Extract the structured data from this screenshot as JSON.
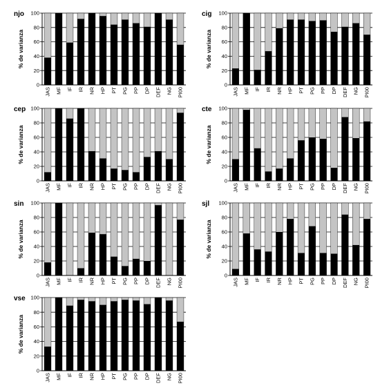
{
  "colors": {
    "dark": "#000000",
    "light": "#c4c4c4",
    "grid": "#000000"
  },
  "chart_data": [
    {
      "type": "bar",
      "title": "njo",
      "ylabel": "% de varianza",
      "ylim": [
        0,
        100
      ],
      "yticks": [
        0,
        20,
        40,
        60,
        80,
        100
      ],
      "categories": [
        "JAS",
        "MF",
        "IF",
        "IR",
        "NR",
        "HP",
        "PT",
        "PG",
        "PP",
        "DP",
        "DEF",
        "NG",
        "PI00"
      ],
      "values": [
        38,
        100,
        59,
        92,
        100,
        96,
        84,
        91,
        86,
        81,
        100,
        91,
        56
      ]
    },
    {
      "type": "bar",
      "title": "cig",
      "ylabel": "% de varianza",
      "ylim": [
        0,
        100
      ],
      "yticks": [
        0,
        20,
        40,
        60,
        80,
        100
      ],
      "categories": [
        "JAS",
        "MF",
        "IF",
        "IR",
        "NR",
        "HP",
        "PT",
        "PG",
        "PP",
        "DP",
        "DEF",
        "NG",
        "PI00"
      ],
      "values": [
        23,
        100,
        21,
        47,
        79,
        91,
        91,
        89,
        90,
        74,
        81,
        86,
        70
      ]
    },
    {
      "type": "bar",
      "title": "cep",
      "ylabel": "% de varianza",
      "ylim": [
        0,
        100
      ],
      "yticks": [
        0,
        20,
        40,
        60,
        80,
        100
      ],
      "categories": [
        "JAS",
        "MF",
        "IF",
        "IR",
        "NR",
        "HP",
        "PT",
        "PG",
        "PP",
        "DP",
        "DEF",
        "NG",
        "PI00"
      ],
      "values": [
        12,
        100,
        86,
        100,
        41,
        31,
        17,
        15,
        12,
        33,
        41,
        30,
        94
      ]
    },
    {
      "type": "bar",
      "title": "cte",
      "ylabel": "% de varianza",
      "ylim": [
        0,
        100
      ],
      "yticks": [
        0,
        20,
        40,
        60,
        80,
        100
      ],
      "categories": [
        "JAS",
        "MF",
        "IF",
        "IR",
        "NR",
        "HP",
        "PT",
        "PG",
        "PP",
        "DP",
        "DEF",
        "NG",
        "PI00"
      ],
      "values": [
        30,
        98,
        45,
        13,
        17,
        31,
        56,
        60,
        58,
        18,
        88,
        59,
        82
      ]
    },
    {
      "type": "bar",
      "title": "sin",
      "ylabel": "% de varianza",
      "ylim": [
        0,
        100
      ],
      "yticks": [
        0,
        20,
        40,
        60,
        80,
        100
      ],
      "categories": [
        "JAS",
        "MF",
        "IF",
        "IR",
        "NR",
        "HP",
        "PT",
        "PG",
        "PP",
        "DP",
        "DEF",
        "NG",
        "PI00"
      ],
      "values": [
        18,
        100,
        0,
        10,
        59,
        57,
        26,
        13,
        23,
        20,
        97,
        0,
        77
      ]
    },
    {
      "type": "bar",
      "title": "sjl",
      "ylabel": "% de varianza",
      "ylim": [
        0,
        100
      ],
      "yticks": [
        0,
        20,
        40,
        60,
        80,
        100
      ],
      "categories": [
        "JAS",
        "MF",
        "IF",
        "IR",
        "NR",
        "HP",
        "PT",
        "PG",
        "PP",
        "DP",
        "DEF",
        "NG",
        "PI00"
      ],
      "values": [
        9,
        58,
        36,
        33,
        60,
        78,
        31,
        68,
        31,
        30,
        84,
        42,
        78
      ]
    },
    {
      "type": "bar",
      "title": "vse",
      "ylabel": "% de varianza",
      "ylim": [
        0,
        100
      ],
      "yticks": [
        0,
        20,
        40,
        60,
        80,
        100
      ],
      "categories": [
        "JAS",
        "MF",
        "IF",
        "IR",
        "NR",
        "HP",
        "PT",
        "PG",
        "PP",
        "DP",
        "DEF",
        "NG",
        "PI00"
      ],
      "values": [
        33,
        100,
        89,
        97,
        95,
        90,
        95,
        97,
        96,
        91,
        100,
        96,
        67
      ]
    }
  ]
}
